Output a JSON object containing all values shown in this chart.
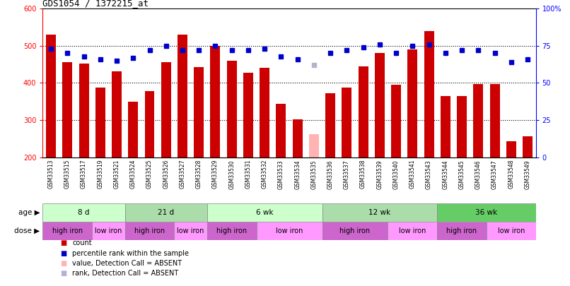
{
  "title": "GDS1054 / 1372215_at",
  "samples": [
    "GSM33513",
    "GSM33515",
    "GSM33517",
    "GSM33519",
    "GSM33521",
    "GSM33524",
    "GSM33525",
    "GSM33526",
    "GSM33527",
    "GSM33528",
    "GSM33529",
    "GSM33530",
    "GSM33531",
    "GSM33532",
    "GSM33533",
    "GSM33534",
    "GSM33535",
    "GSM33536",
    "GSM33537",
    "GSM33538",
    "GSM33539",
    "GSM33540",
    "GSM33541",
    "GSM33543",
    "GSM33544",
    "GSM33545",
    "GSM33546",
    "GSM33547",
    "GSM33548",
    "GSM33549"
  ],
  "counts": [
    530,
    455,
    453,
    388,
    432,
    350,
    378,
    455,
    530,
    443,
    500,
    460,
    428,
    440,
    343,
    303,
    263,
    373,
    388,
    445,
    480,
    395,
    490,
    540,
    365,
    365,
    398,
    398,
    243,
    257
  ],
  "absent_count_index": 16,
  "absent_count_value": 263,
  "ranks": [
    73,
    70,
    68,
    66,
    65,
    67,
    72,
    75,
    72,
    72,
    75,
    72,
    72,
    73,
    68,
    66,
    null,
    70,
    72,
    74,
    76,
    70,
    75,
    76,
    70,
    72,
    72,
    70,
    64,
    66
  ],
  "absent_rank_index": 16,
  "absent_rank_value": 62,
  "ylim_left": [
    200,
    600
  ],
  "ylim_right": [
    0,
    100
  ],
  "yticks_left": [
    200,
    300,
    400,
    500,
    600
  ],
  "yticks_right": [
    0,
    25,
    50,
    75,
    100
  ],
  "yticklabels_right": [
    "0",
    "25",
    "50",
    "75",
    "100%"
  ],
  "bar_color": "#cc0000",
  "absent_bar_color": "#ffb3b3",
  "dot_color": "#0000cc",
  "absent_dot_color": "#b3b3cc",
  "hgrid_values": [
    300,
    400,
    500
  ],
  "age_groups": [
    {
      "label": "8 d",
      "start": 0,
      "end": 5,
      "color": "#ccffcc"
    },
    {
      "label": "21 d",
      "start": 5,
      "end": 10,
      "color": "#aaddaa"
    },
    {
      "label": "6 wk",
      "start": 10,
      "end": 17,
      "color": "#ccffcc"
    },
    {
      "label": "12 wk",
      "start": 17,
      "end": 24,
      "color": "#aaddaa"
    },
    {
      "label": "36 wk",
      "start": 24,
      "end": 30,
      "color": "#66cc66"
    }
  ],
  "dose_groups": [
    {
      "label": "high iron",
      "start": 0,
      "end": 3,
      "color": "#cc66cc"
    },
    {
      "label": "low iron",
      "start": 3,
      "end": 5,
      "color": "#ff99ff"
    },
    {
      "label": "high iron",
      "start": 5,
      "end": 8,
      "color": "#cc66cc"
    },
    {
      "label": "low iron",
      "start": 8,
      "end": 10,
      "color": "#ff99ff"
    },
    {
      "label": "high iron",
      "start": 10,
      "end": 13,
      "color": "#cc66cc"
    },
    {
      "label": "low iron",
      "start": 13,
      "end": 17,
      "color": "#ff99ff"
    },
    {
      "label": "high iron",
      "start": 17,
      "end": 21,
      "color": "#cc66cc"
    },
    {
      "label": "low iron",
      "start": 21,
      "end": 24,
      "color": "#ff99ff"
    },
    {
      "label": "high iron",
      "start": 24,
      "end": 27,
      "color": "#cc66cc"
    },
    {
      "label": "low iron",
      "start": 27,
      "end": 30,
      "color": "#ff99ff"
    }
  ],
  "legend_items": [
    {
      "label": "count",
      "color": "#cc0000"
    },
    {
      "label": "percentile rank within the sample",
      "color": "#0000cc"
    },
    {
      "label": "value, Detection Call = ABSENT",
      "color": "#ffb3b3"
    },
    {
      "label": "rank, Detection Call = ABSENT",
      "color": "#b3b3cc"
    }
  ],
  "age_row_label": "age",
  "dose_row_label": "dose",
  "background_color": "#ffffff",
  "fig_width": 8.06,
  "fig_height": 4.05,
  "fig_dpi": 100
}
